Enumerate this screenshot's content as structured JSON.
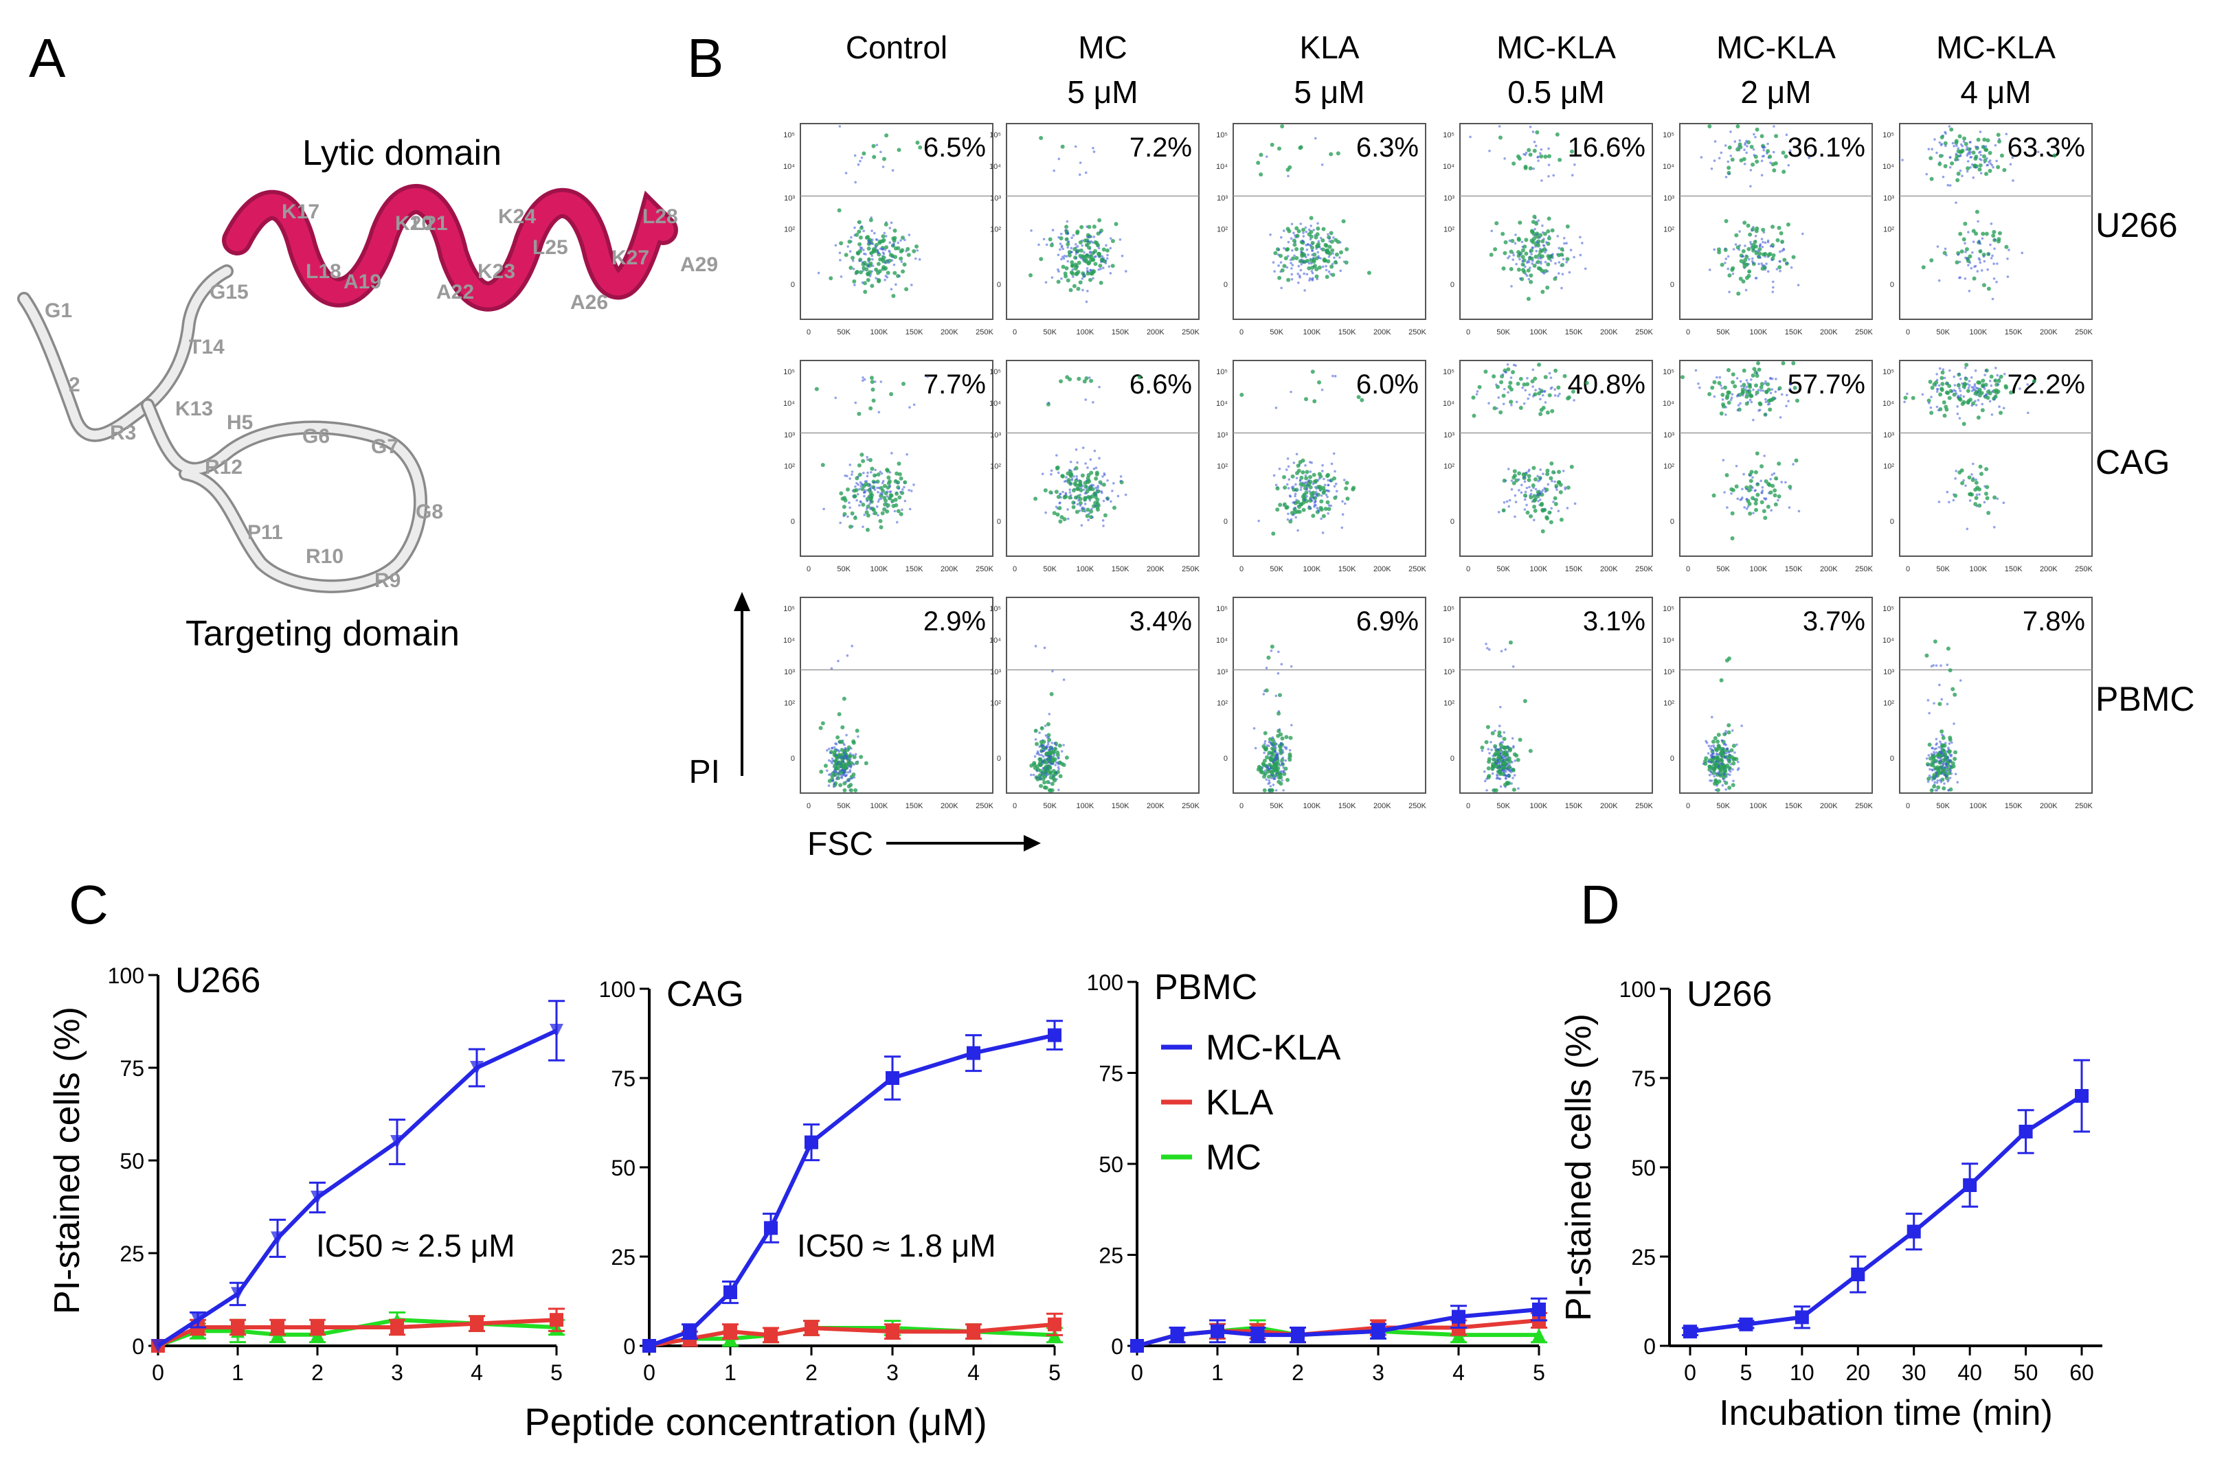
{
  "panels": {
    "A": "A",
    "B": "B",
    "C": "C",
    "D": "D"
  },
  "panelA": {
    "lytic_label": "Lytic domain",
    "targeting_label": "Targeting domain",
    "residues": {
      "G1": "G1",
      "X2": "2",
      "R3": "R3",
      "H5": "H5",
      "G6": "G6",
      "G7": "G7",
      "G8": "G8",
      "R9": "R9",
      "R10": "R10",
      "P11": "P11",
      "R12": "R12",
      "K13": "K13",
      "T14": "T14",
      "G15": "G15",
      "K17": "K17",
      "L18": "L18",
      "A19": "A19",
      "K20": "K20",
      "L21": "L21",
      "A22": "A22",
      "K23": "K23",
      "K24": "K24",
      "L25": "L25",
      "A26": "A26",
      "K27": "K27",
      "L28": "L28",
      "A29": "A29"
    },
    "colors": {
      "helix": "#d81b60",
      "helix_dark": "#a0124a",
      "loop": "#e6e6e6",
      "loop_edge": "#8a8a8a",
      "residue_text": "#9a9a9a"
    }
  },
  "flow": {
    "columns": [
      {
        "line1": "Control",
        "line2": ""
      },
      {
        "line1": "MC",
        "line2": "5 μM"
      },
      {
        "line1": "KLA",
        "line2": "5 μM"
      },
      {
        "line1": "MC-KLA",
        "line2": "0.5 μM"
      },
      {
        "line1": "MC-KLA",
        "line2": "2 μM"
      },
      {
        "line1": "MC-KLA",
        "line2": "4 μM"
      }
    ],
    "rows": [
      {
        "label": "U266",
        "values": [
          "6.5%",
          "7.2%",
          "6.3%",
          "16.6%",
          "36.1%",
          "63.3%"
        ]
      },
      {
        "label": "CAG",
        "values": [
          "7.7%",
          "6.6%",
          "6.0%",
          "40.8%",
          "57.7%",
          "72.2%"
        ]
      },
      {
        "label": "PBMC",
        "values": [
          "2.9%",
          "3.4%",
          "6.9%",
          "3.1%",
          "3.7%",
          "7.8%"
        ]
      }
    ],
    "y_ticks": [
      "10⁵",
      "10⁴",
      "10³",
      "10²",
      "0"
    ],
    "x_ticks": [
      "0",
      "50K",
      "100K",
      "150K",
      "200K",
      "250K"
    ],
    "y_axis_label": "PI",
    "x_axis_label": "FSC"
  },
  "chart_data": [
    {
      "type": "line",
      "id": "C1",
      "title": "U266",
      "xlabel": "Peptide concentration (μM)",
      "ylabel": "PI-stained cells (%)",
      "x": [
        0,
        0.5,
        1,
        1.5,
        2,
        3,
        4,
        5
      ],
      "xlim": [
        0,
        5
      ],
      "ylim": [
        0,
        100
      ],
      "xticks": [
        0,
        1,
        2,
        3,
        4,
        5
      ],
      "yticks": [
        0,
        25,
        50,
        75,
        100
      ],
      "annotation": "IC50 ≈ 2.5 μM",
      "series": [
        {
          "name": "MC-KLA",
          "color": "#2626e6",
          "marker": "triangle-down",
          "values": [
            0,
            7,
            14,
            29,
            40,
            55,
            75,
            85
          ],
          "errors": [
            0,
            2,
            3,
            5,
            4,
            6,
            5,
            8
          ]
        },
        {
          "name": "KLA",
          "color": "#e53935",
          "marker": "square",
          "values": [
            0,
            5,
            5,
            5,
            5,
            5,
            6,
            7
          ],
          "errors": [
            0,
            2,
            2,
            2,
            2,
            2,
            2,
            3
          ]
        },
        {
          "name": "MC",
          "color": "#22dd22",
          "marker": "triangle",
          "values": [
            0,
            4,
            4,
            3,
            3,
            7,
            6,
            5
          ],
          "errors": [
            0,
            2,
            3,
            2,
            2,
            2,
            2,
            2
          ]
        }
      ]
    },
    {
      "type": "line",
      "id": "C2",
      "title": "CAG",
      "xlabel": "Peptide concentration (μM)",
      "ylabel": "",
      "x": [
        0,
        0.5,
        1,
        1.5,
        2,
        3,
        4,
        5
      ],
      "xlim": [
        0,
        5
      ],
      "ylim": [
        0,
        100
      ],
      "xticks": [
        0,
        1,
        2,
        3,
        4,
        5
      ],
      "yticks": [
        0,
        25,
        50,
        75,
        100
      ],
      "annotation": "IC50 ≈ 1.8 μM",
      "series": [
        {
          "name": "MC-KLA",
          "color": "#2626e6",
          "marker": "square",
          "values": [
            0,
            4,
            15,
            33,
            57,
            75,
            82,
            87
          ],
          "errors": [
            0,
            2,
            3,
            4,
            5,
            6,
            5,
            4
          ]
        },
        {
          "name": "KLA",
          "color": "#e53935",
          "marker": "square",
          "values": [
            0,
            2,
            4,
            3,
            5,
            4,
            4,
            6
          ],
          "errors": [
            0,
            2,
            2,
            2,
            2,
            2,
            2,
            3
          ]
        },
        {
          "name": "MC",
          "color": "#22dd22",
          "marker": "triangle",
          "values": [
            0,
            2,
            2,
            3,
            5,
            5,
            4,
            3
          ],
          "errors": [
            0,
            2,
            2,
            2,
            2,
            2,
            2,
            2
          ]
        }
      ]
    },
    {
      "type": "line",
      "id": "C3",
      "title": "PBMC",
      "xlabel": "Peptide concentration (μM)",
      "ylabel": "",
      "x": [
        0,
        0.5,
        1,
        1.5,
        2,
        3,
        4,
        5
      ],
      "xlim": [
        0,
        5
      ],
      "ylim": [
        0,
        100
      ],
      "xticks": [
        0,
        1,
        2,
        3,
        4,
        5
      ],
      "yticks": [
        0,
        25,
        50,
        75,
        100
      ],
      "legend": {
        "position": "top-left",
        "entries": [
          "MC-KLA",
          "KLA",
          "MC"
        ]
      },
      "series": [
        {
          "name": "MC-KLA",
          "color": "#2626e6",
          "marker": "square",
          "values": [
            0,
            3,
            4,
            3,
            3,
            4,
            8,
            10
          ],
          "errors": [
            0,
            2,
            3,
            2,
            2,
            2,
            3,
            3
          ]
        },
        {
          "name": "KLA",
          "color": "#e53935",
          "marker": "square",
          "values": [
            0,
            3,
            4,
            4,
            3,
            5,
            5,
            7
          ],
          "errors": [
            0,
            2,
            2,
            2,
            2,
            2,
            2,
            2
          ]
        },
        {
          "name": "MC",
          "color": "#22dd22",
          "marker": "triangle",
          "values": [
            0,
            3,
            4,
            5,
            3,
            4,
            3,
            3
          ],
          "errors": [
            0,
            2,
            2,
            2,
            2,
            2,
            2,
            2
          ]
        }
      ]
    },
    {
      "type": "line",
      "id": "D",
      "title": "U266",
      "xlabel": "Incubation time (min)",
      "ylabel": "PI-stained cells (%)",
      "x_categories": [
        "0",
        "5",
        "10",
        "20",
        "30",
        "40",
        "50",
        "60"
      ],
      "ylim": [
        0,
        100
      ],
      "yticks": [
        0,
        25,
        50,
        75,
        100
      ],
      "series": [
        {
          "name": "MC-KLA",
          "color": "#2626e6",
          "marker": "square",
          "values": [
            4,
            6,
            8,
            20,
            32,
            45,
            60,
            70
          ],
          "errors": [
            1,
            1,
            3,
            5,
            5,
            6,
            6,
            10
          ]
        }
      ]
    }
  ]
}
